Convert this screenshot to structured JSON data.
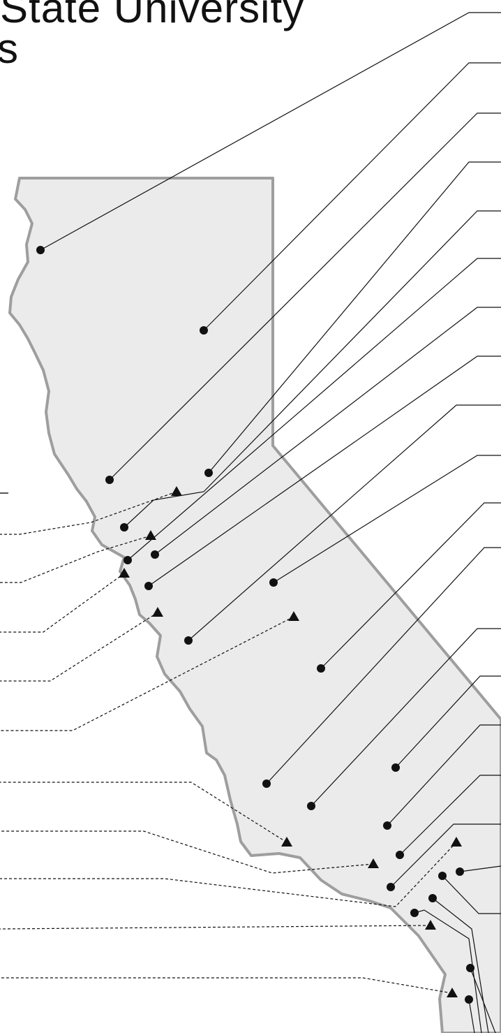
{
  "title": {
    "line1": "State University",
    "line2": "s"
  },
  "colors": {
    "land_fill": "#ebebeb",
    "border_stroke": "#9e9e9e",
    "leader_line": "#111111",
    "marker": "#111111"
  },
  "legend_markers": {
    "campus": "dot",
    "other_site": "triangle"
  }
}
